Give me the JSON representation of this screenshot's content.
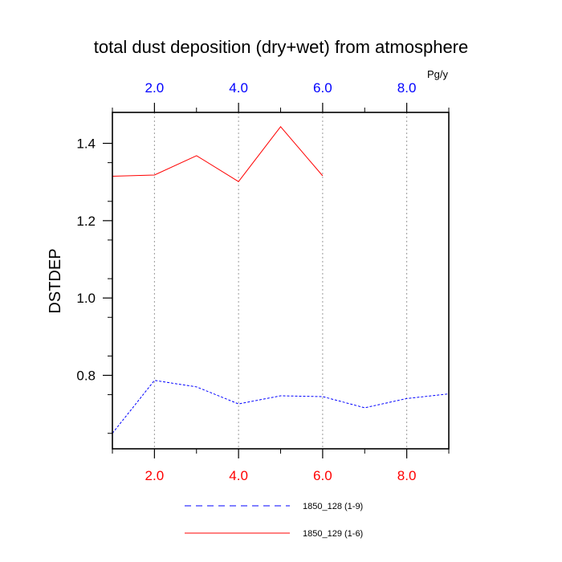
{
  "chart_data": {
    "type": "line",
    "title": "total dust deposition (dry+wet) from atmosphere",
    "ylabel": "DSTDEP",
    "top_axis_unit": "Pg/y",
    "xlim": [
      1,
      9
    ],
    "ylim": [
      0.61,
      1.48
    ],
    "x_ticks": [
      2,
      4,
      6,
      8
    ],
    "x_tick_labels": [
      "2.0",
      "4.0",
      "6.0",
      "8.0"
    ],
    "y_ticks": [
      0.8,
      1.0,
      1.2,
      1.4
    ],
    "y_tick_labels": [
      "0.8",
      "1.0",
      "1.2",
      "1.4"
    ],
    "grid": "vertical dotted lines at major x ticks",
    "colors": {
      "top_axis_labels": "#0000ff",
      "bottom_axis_labels": "#ff0000"
    },
    "series": [
      {
        "name": "1850_128 (1-9)",
        "color": "#0000ff",
        "dash": "dashed",
        "x": [
          1,
          2,
          3,
          4,
          5,
          6,
          7,
          8,
          9
        ],
        "values": [
          0.65,
          0.787,
          0.77,
          0.726,
          0.747,
          0.745,
          0.716,
          0.74,
          0.752
        ]
      },
      {
        "name": "1850_129 (1-6)",
        "color": "#ff0000",
        "dash": "solid",
        "x": [
          1,
          2,
          3,
          4,
          5,
          6
        ],
        "values": [
          1.315,
          1.318,
          1.368,
          1.301,
          1.443,
          1.316
        ]
      }
    ],
    "legend_position": "bottom-center"
  }
}
